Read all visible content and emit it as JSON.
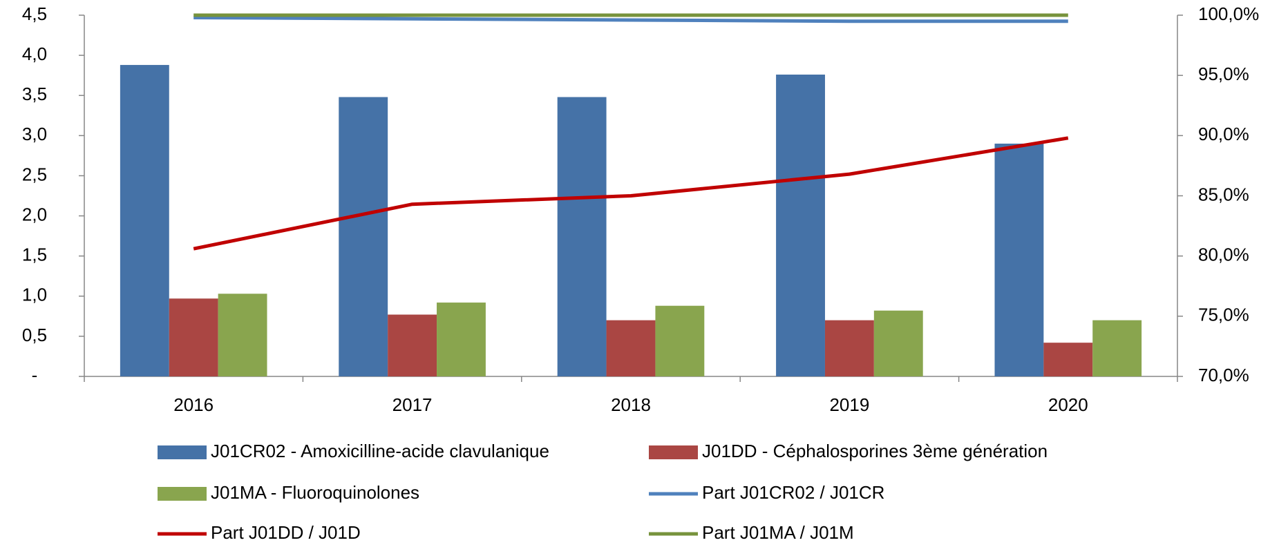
{
  "chart_data": {
    "type": "bar",
    "categories": [
      "2016",
      "2017",
      "2018",
      "2019",
      "2020"
    ],
    "series": [
      {
        "name": "J01CR02 - Amoxicilline-acide clavulanique",
        "color": "#4572a7",
        "values": [
          3.88,
          3.48,
          3.48,
          3.76,
          2.9
        ]
      },
      {
        "name": "J01DD -  Céphalosporines 3ème génération",
        "color": "#aa4643",
        "values": [
          0.97,
          0.77,
          0.7,
          0.7,
          0.42
        ]
      },
      {
        "name": "J01MA - Fluoroquinolones",
        "color": "#89a54e",
        "values": [
          1.03,
          0.92,
          0.88,
          0.82,
          0.7
        ]
      },
      {
        "name": "Part J01CR02 / J01CR",
        "color": "#4f81bd",
        "axis": "y2",
        "values": [
          99.8,
          99.7,
          99.6,
          99.5,
          99.5
        ]
      },
      {
        "name": "Part J01DD / J01D",
        "color": "#c00000",
        "axis": "y2",
        "values": [
          80.6,
          84.3,
          85.0,
          86.8,
          89.8
        ]
      },
      {
        "name": "Part J01MA / J01M",
        "color": "#77933c",
        "axis": "y2",
        "values": [
          100,
          100,
          100,
          100,
          100
        ]
      }
    ],
    "ylim": [
      0,
      4.5
    ],
    "yticks": [
      {
        "value": 0,
        "label": "-"
      },
      {
        "value": 0.5,
        "label": "0,5"
      },
      {
        "value": 1,
        "label": "1,0"
      },
      {
        "value": 1.5,
        "label": "1,5"
      },
      {
        "value": 2,
        "label": "2,0"
      },
      {
        "value": 2.5,
        "label": "2,5"
      },
      {
        "value": 3,
        "label": "3,0"
      },
      {
        "value": 3.5,
        "label": "3,5"
      },
      {
        "value": 4,
        "label": "4,0"
      },
      {
        "value": 4.5,
        "label": "4,5"
      }
    ],
    "y2lim": [
      70,
      100
    ],
    "y2ticks": [
      {
        "value": 70,
        "label": "70,0%"
      },
      {
        "value": 75,
        "label": "75,0%"
      },
      {
        "value": 80,
        "label": "80,0%"
      },
      {
        "value": 85,
        "label": "85,0%"
      },
      {
        "value": 90,
        "label": "90,0%"
      },
      {
        "value": 95,
        "label": "95,0%"
      },
      {
        "value": 100,
        "label": "100,0%"
      }
    ],
    "grid": false,
    "legend": "bottom"
  }
}
